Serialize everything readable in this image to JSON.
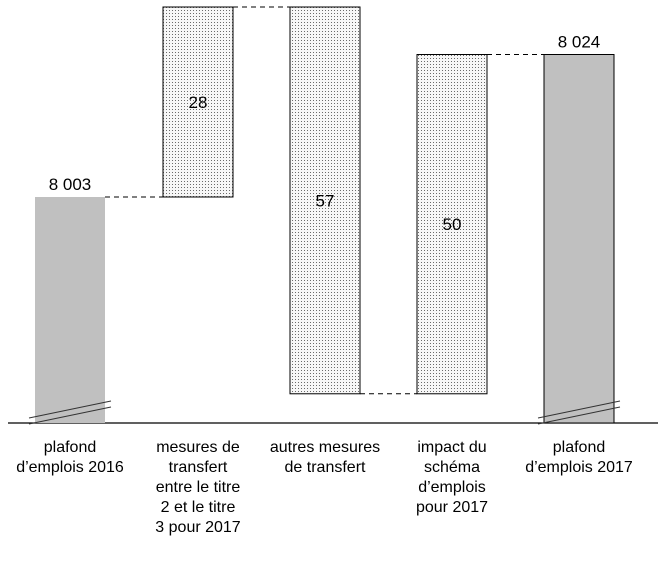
{
  "chart_data": {
    "type": "bar",
    "subtype": "waterfall",
    "title": "",
    "xlabel": "",
    "ylabel": "",
    "axis_break": true,
    "grid": false,
    "legend": "none",
    "categories": [
      [
        "plafond",
        "d’emplois 2016"
      ],
      [
        "mesures de",
        "transfert",
        "entre le titre",
        "2 et le titre",
        "3 pour 2017"
      ],
      [
        "autres mesures",
        "de transfert"
      ],
      [
        "impact du",
        "schéma",
        "d’emplois",
        "pour 2017"
      ],
      [
        "plafond",
        "d’emplois 2017"
      ]
    ],
    "bars": [
      {
        "kind": "total",
        "start": 0,
        "end": 8003,
        "label": "8 003"
      },
      {
        "kind": "increase",
        "start": 8003,
        "end": 8031,
        "label": "28"
      },
      {
        "kind": "decrease",
        "start": 8031,
        "end": 7974,
        "label": "57"
      },
      {
        "kind": "increase",
        "start": 7974,
        "end": 8024,
        "label": "50"
      },
      {
        "kind": "total",
        "start": 0,
        "end": 8024,
        "label": "8 024"
      }
    ],
    "colors": {
      "total_fill": "#c0c0c0",
      "delta_fill": "#f4f4f4",
      "stroke": "#000000"
    }
  }
}
